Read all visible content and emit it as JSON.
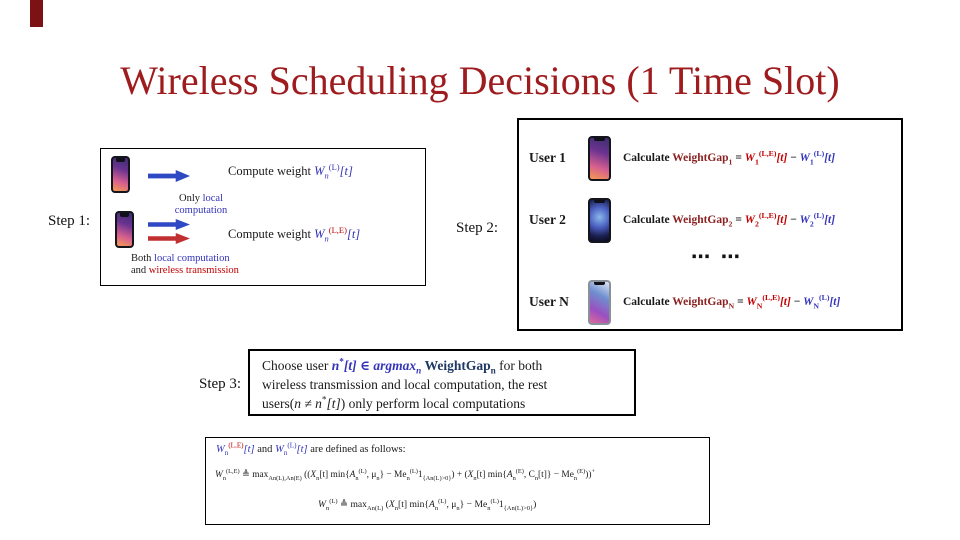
{
  "slide": {
    "title": "Wireless Scheduling Decisions (1 Time Slot)"
  },
  "colors": {
    "title_red": "#9e1b1e",
    "math_blue": "#3333bb",
    "math_red": "#c00000",
    "weightgap_maroon": "#8b2222",
    "weightgap_navy": "#1f3864",
    "arrow_blue": "#2f49c4",
    "arrow_red": "#c03030",
    "corner_mark": "#7a1216"
  },
  "icons": {
    "phone_step1_top": "smartphone-icon",
    "phone_step1_bottom": "smartphone-icon",
    "arrow_local": "blue-right-arrow-icon",
    "arrow_wireless": "red-right-arrow-icon"
  },
  "steps": {
    "step1": {
      "label": "Step 1:"
    },
    "step2": {
      "label": "Step 2:"
    },
    "step3": {
      "label": "Step 3:"
    }
  },
  "step1_box": {
    "row1": [
      {
        "t": "Compute weight ",
        "c": "k"
      },
      {
        "t": "W",
        "c": "b",
        "i": 1
      },
      {
        "t": "n",
        "c": "b",
        "v": "sub",
        "i": 1
      },
      {
        "t": "(L)",
        "c": "b",
        "v": "sup"
      },
      {
        "t": "[t]",
        "c": "b",
        "i": 1
      }
    ],
    "only_local_line1": [
      {
        "t": "Only ",
        "c": "k"
      },
      {
        "t": "local",
        "c": "b"
      }
    ],
    "only_local_line2": [
      {
        "t": "computation",
        "c": "b"
      }
    ],
    "row2": [
      {
        "t": "Compute weight ",
        "c": "k"
      },
      {
        "t": "W",
        "c": "b",
        "i": 1
      },
      {
        "t": "n",
        "c": "b",
        "v": "sub",
        "i": 1
      },
      {
        "t": "(L,E)",
        "c": "r",
        "v": "sup"
      },
      {
        "t": "[t]",
        "c": "b",
        "i": 1
      }
    ],
    "both_line1": [
      {
        "t": "Both ",
        "c": "k"
      },
      {
        "t": "local computation",
        "c": "b"
      }
    ],
    "both_line2": [
      {
        "t": "and ",
        "c": "k"
      },
      {
        "t": "wireless transmission",
        "c": "r"
      }
    ]
  },
  "step2_box": {
    "dots": "⋯ ⋯",
    "users": [
      {
        "label": "User 1",
        "eq": [
          {
            "t": "Calculate ",
            "c": "k"
          },
          {
            "t": "WeightGap",
            "c": "m"
          },
          {
            "t": "1",
            "c": "m",
            "v": "sub"
          },
          {
            "t": " = ",
            "c": "k"
          },
          {
            "t": "W",
            "c": "r",
            "i": 1
          },
          {
            "t": "1",
            "c": "r",
            "v": "sub"
          },
          {
            "t": "(L,E)",
            "c": "r",
            "v": "sup"
          },
          {
            "t": "[t]",
            "c": "r",
            "i": 1
          },
          {
            "t": " − ",
            "c": "k"
          },
          {
            "t": "W",
            "c": "b",
            "i": 1
          },
          {
            "t": "1",
            "c": "b",
            "v": "sub"
          },
          {
            "t": "(L)",
            "c": "b",
            "v": "sup"
          },
          {
            "t": "[t]",
            "c": "b",
            "i": 1
          }
        ]
      },
      {
        "label": "User 2",
        "eq": [
          {
            "t": "Calculate ",
            "c": "k"
          },
          {
            "t": "WeightGap",
            "c": "m"
          },
          {
            "t": "2",
            "c": "m",
            "v": "sub"
          },
          {
            "t": " = ",
            "c": "k"
          },
          {
            "t": "W",
            "c": "r",
            "i": 1
          },
          {
            "t": "2",
            "c": "r",
            "v": "sub"
          },
          {
            "t": "(L,E)",
            "c": "r",
            "v": "sup"
          },
          {
            "t": "[t]",
            "c": "r",
            "i": 1
          },
          {
            "t": " − ",
            "c": "k"
          },
          {
            "t": "W",
            "c": "b",
            "i": 1
          },
          {
            "t": "2",
            "c": "b",
            "v": "sub"
          },
          {
            "t": "(L)",
            "c": "b",
            "v": "sup"
          },
          {
            "t": "[t]",
            "c": "b",
            "i": 1
          }
        ]
      },
      {
        "label": "User N",
        "eq": [
          {
            "t": "Calculate ",
            "c": "k"
          },
          {
            "t": "WeightGap",
            "c": "m"
          },
          {
            "t": "N",
            "c": "m",
            "v": "sub"
          },
          {
            "t": " = ",
            "c": "k"
          },
          {
            "t": "W",
            "c": "r",
            "i": 1
          },
          {
            "t": "N",
            "c": "r",
            "v": "sub"
          },
          {
            "t": "(L,E)",
            "c": "r",
            "v": "sup"
          },
          {
            "t": "[t]",
            "c": "r",
            "i": 1
          },
          {
            "t": " − ",
            "c": "k"
          },
          {
            "t": "W",
            "c": "b",
            "i": 1
          },
          {
            "t": "N",
            "c": "b",
            "v": "sub"
          },
          {
            "t": "(L)",
            "c": "b",
            "v": "sup"
          },
          {
            "t": "[t]",
            "c": "b",
            "i": 1
          }
        ]
      }
    ]
  },
  "step3_box": {
    "line1": [
      {
        "t": "Choose user ",
        "c": "k"
      },
      {
        "t": "n",
        "c": "b",
        "i": 1,
        "b": 1
      },
      {
        "t": "*",
        "c": "b",
        "v": "sup",
        "b": 1
      },
      {
        "t": "[t]",
        "c": "b",
        "i": 1,
        "b": 1
      },
      {
        "t": " ∈ ",
        "c": "b",
        "b": 1
      },
      {
        "t": "argmax",
        "c": "b",
        "i": 1,
        "b": 1
      },
      {
        "t": "n",
        "c": "b",
        "v": "sub",
        "i": 1,
        "b": 1
      },
      {
        "t": " ",
        "c": "k"
      },
      {
        "t": "WeightGap",
        "c": "n",
        "b": 1
      },
      {
        "t": "n",
        "c": "n",
        "v": "sub",
        "b": 1
      },
      {
        "t": " for both",
        "c": "k"
      }
    ],
    "line2": [
      {
        "t": "wireless transmission and local computation, the rest",
        "c": "k"
      }
    ],
    "line3": [
      {
        "t": "users(",
        "c": "k"
      },
      {
        "t": "n ≠ n",
        "c": "k",
        "i": 1
      },
      {
        "t": "*",
        "c": "k",
        "v": "sup"
      },
      {
        "t": "[t]",
        "c": "k",
        "i": 1
      },
      {
        "t": ") only perform local computations",
        "c": "k"
      }
    ]
  },
  "defs_box": {
    "line1": [
      {
        "t": "W",
        "c": "b",
        "i": 1
      },
      {
        "t": "n",
        "c": "b",
        "v": "sub"
      },
      {
        "t": "(L,E)",
        "c": "r",
        "v": "sup"
      },
      {
        "t": "[t]",
        "c": "b",
        "i": 1
      },
      {
        "t": " and ",
        "c": "k"
      },
      {
        "t": "W",
        "c": "b",
        "i": 1
      },
      {
        "t": "n",
        "c": "b",
        "v": "sub"
      },
      {
        "t": "(L)",
        "c": "b",
        "v": "sup"
      },
      {
        "t": "[t]",
        "c": "b",
        "i": 1
      },
      {
        "t": " are defined as follows:",
        "c": "k"
      }
    ],
    "line2": [
      {
        "t": "W",
        "i": 1
      },
      {
        "t": "n",
        "v": "sub"
      },
      {
        "t": "(L,E)",
        "v": "sup"
      },
      {
        "t": " ≜ "
      },
      {
        "t": "max"
      },
      {
        "t": "An(L),An(E)",
        "v": "sub"
      },
      {
        "t": " (("
      },
      {
        "t": "X",
        "i": 1
      },
      {
        "t": "n",
        "v": "sub"
      },
      {
        "t": "[t] min{"
      },
      {
        "t": "A",
        "i": 1
      },
      {
        "t": "n",
        "v": "sub"
      },
      {
        "t": "(L)",
        "v": "sup"
      },
      {
        "t": ", μ"
      },
      {
        "t": "n",
        "v": "sub"
      },
      {
        "t": "} − Me"
      },
      {
        "t": "n",
        "v": "sub"
      },
      {
        "t": "(L)",
        "v": "sup"
      },
      {
        "t": "1"
      },
      {
        "t": "{An(L)>0}",
        "v": "sub"
      },
      {
        "t": ") + ("
      },
      {
        "t": "X",
        "i": 1
      },
      {
        "t": "n",
        "v": "sub"
      },
      {
        "t": "[t] min{"
      },
      {
        "t": "A",
        "i": 1
      },
      {
        "t": "n",
        "v": "sub"
      },
      {
        "t": "(E)",
        "v": "sup"
      },
      {
        "t": ", C"
      },
      {
        "t": "n",
        "v": "sub"
      },
      {
        "t": "[t]} − Me"
      },
      {
        "t": "n",
        "v": "sub"
      },
      {
        "t": "(E)",
        "v": "sup"
      },
      {
        "t": "))"
      },
      {
        "t": "+",
        "v": "sup"
      }
    ],
    "line3": [
      {
        "t": "W",
        "i": 1
      },
      {
        "t": "n",
        "v": "sub"
      },
      {
        "t": "(L)",
        "v": "sup"
      },
      {
        "t": " ≜ "
      },
      {
        "t": "max"
      },
      {
        "t": "An(L)",
        "v": "sub"
      },
      {
        "t": " ("
      },
      {
        "t": "X",
        "i": 1
      },
      {
        "t": "n",
        "v": "sub"
      },
      {
        "t": "[t] min{"
      },
      {
        "t": "A",
        "i": 1
      },
      {
        "t": "n",
        "v": "sub"
      },
      {
        "t": "(L)",
        "v": "sup"
      },
      {
        "t": ", μ"
      },
      {
        "t": "n",
        "v": "sub"
      },
      {
        "t": "} − Me"
      },
      {
        "t": "n",
        "v": "sub"
      },
      {
        "t": "(L)",
        "v": "sup"
      },
      {
        "t": "1"
      },
      {
        "t": "{An(L)>0}",
        "v": "sub"
      },
      {
        "t": ")"
      }
    ]
  }
}
